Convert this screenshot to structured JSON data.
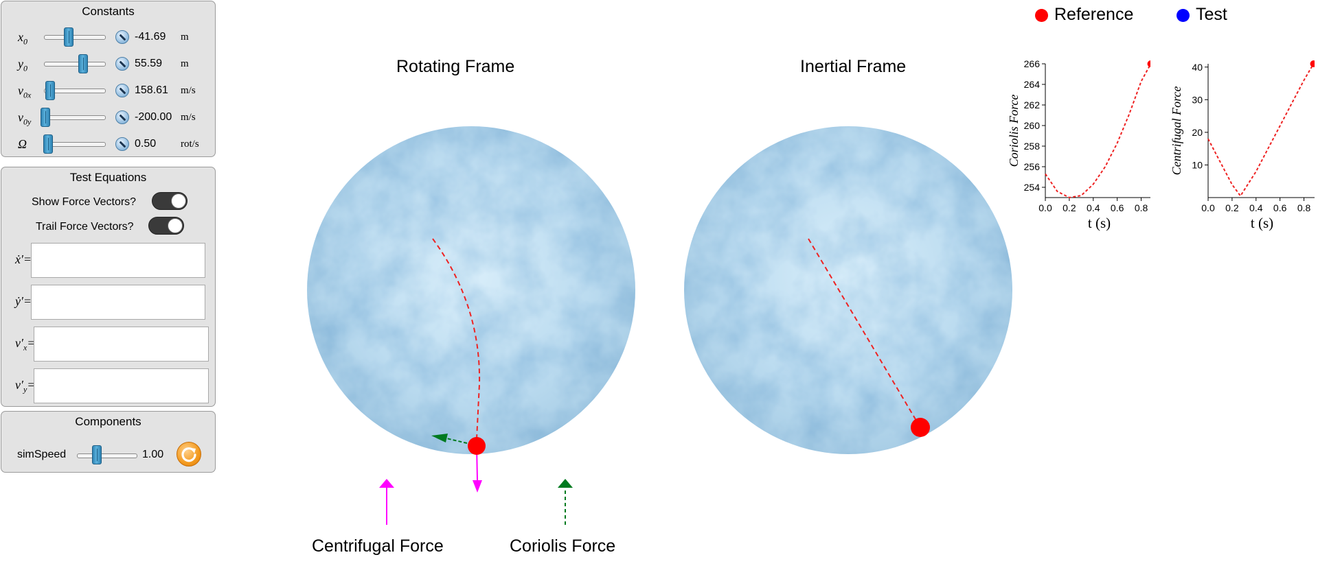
{
  "constants": {
    "title": "Constants",
    "rows": [
      {
        "sym": "x",
        "sub": "0",
        "value": "-41.69",
        "unit": "m"
      },
      {
        "sym": "y",
        "sub": "0",
        "value": "55.59",
        "unit": "m"
      },
      {
        "sym": "v",
        "sub": "0x",
        "value": "158.61",
        "unit": "m/s"
      },
      {
        "sym": "v",
        "sub": "0y",
        "value": "-200.00",
        "unit": "m/s"
      },
      {
        "sym": "Ω",
        "sub": "",
        "value": "0.50",
        "unit": "rot/s"
      }
    ]
  },
  "test_equations": {
    "title": "Test Equations",
    "show_force_vectors": "Show Force Vectors?",
    "trail_force_vectors": "Trail Force Vectors?",
    "labels": [
      "ẋ′=",
      "ẏ′=",
      "v′",
      "v′"
    ],
    "label_subs": [
      "",
      "",
      "x",
      "y"
    ],
    "inputs": [
      "",
      "",
      "",
      ""
    ]
  },
  "components": {
    "title": "Components",
    "sim_speed_label": "simSpeed",
    "sim_speed_value": "1.00"
  },
  "frames": {
    "rotating": "Rotating Frame",
    "inertial": "Inertial Frame"
  },
  "legend": {
    "reference": "Reference",
    "test": "Test",
    "reference_color": "#ff0000",
    "test_color": "#0000ff"
  },
  "force_labels": {
    "centrifugal": "Centrifugal Force",
    "coriolis": "Coriolis Force",
    "centrifugal_color": "#ff00ff",
    "coriolis_color": "#007a1f"
  },
  "chart_data": [
    {
      "type": "line",
      "xlabel": "t (s)",
      "ylabel": "Coriolis Force",
      "xlim": [
        0,
        0.9
      ],
      "ylim": [
        253,
        266
      ],
      "xticks": [
        "0.0",
        "0.2",
        "0.4",
        "0.6",
        "0.8"
      ],
      "yticks": [
        "254",
        "256",
        "258",
        "260",
        "262",
        "264",
        "266"
      ],
      "x": [
        0,
        0.1,
        0.2,
        0.3,
        0.4,
        0.5,
        0.6,
        0.7,
        0.8,
        0.88
      ],
      "y": [
        255.3,
        253.6,
        253.0,
        253.2,
        254.3,
        256.0,
        258.3,
        261.1,
        264.3,
        266.0
      ]
    },
    {
      "type": "line",
      "xlabel": "t (s)",
      "ylabel": "Centrifugal Force",
      "xlim": [
        0,
        0.9
      ],
      "ylim": [
        0,
        41
      ],
      "xticks": [
        "0.0",
        "0.2",
        "0.4",
        "0.6",
        "0.8"
      ],
      "yticks": [
        "10",
        "20",
        "30",
        "40"
      ],
      "x": [
        0,
        0.1,
        0.2,
        0.27,
        0.4,
        0.5,
        0.6,
        0.7,
        0.8,
        0.88
      ],
      "y": [
        18,
        11,
        4,
        0.5,
        8,
        15,
        22,
        29,
        36,
        41
      ]
    }
  ]
}
